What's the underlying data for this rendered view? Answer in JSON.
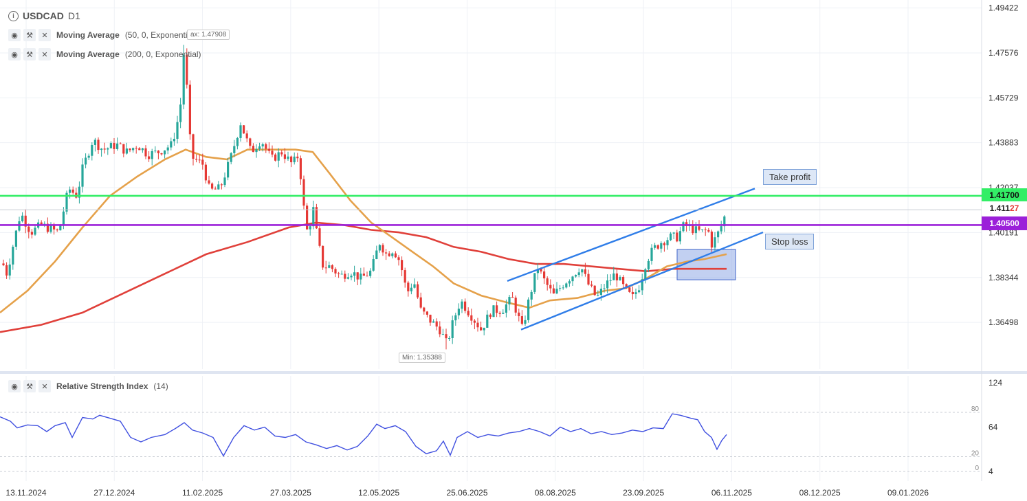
{
  "header": {
    "symbol": "USDCAD",
    "timeframe": "D1",
    "indicators": [
      {
        "name": "Moving Average",
        "params": "(50, 0, Exponential)"
      },
      {
        "name": "Moving Average",
        "params": "(200, 0, Exponential)"
      }
    ],
    "rsi": {
      "name": "Relative Strength Index",
      "params": "(14)"
    }
  },
  "colors": {
    "take_profit_line": "#33ee66",
    "stop_loss_line": "#9b20d9",
    "ema50": "#e5a14a",
    "ema200": "#e0403a",
    "channel": "#2f7de8",
    "rsi": "#4050e0",
    "bull": "#26a69a",
    "bear": "#e53935"
  },
  "annotations": {
    "take_profit": "Take profit",
    "stop_loss": "Stop loss",
    "max_tip": "ax: 1.47908",
    "min_tip": "Min: 1.35388"
  },
  "levels": {
    "take_profit_value": "1.41700",
    "current_value_a": "1.411",
    "current_value_b": "27",
    "stop_loss_value": "1.40500"
  },
  "chart_data": [
    {
      "type": "candlestick",
      "title": "USDCAD D1",
      "y_ticks": [
        "1.49422",
        "1.47576",
        "1.45729",
        "1.43883",
        "1.42037",
        "1.40191",
        "1.38344",
        "1.36498"
      ],
      "x_ticks": [
        "13.11.2024",
        "27.12.2024",
        "11.02.2025",
        "27.03.2025",
        "12.05.2025",
        "25.06.2025",
        "08.08.2025",
        "23.09.2025",
        "06.11.2025",
        "08.12.2025",
        "09.01.2026"
      ],
      "ylim": [
        1.3458,
        1.4975
      ],
      "max": 1.47908,
      "min": 1.35388,
      "horizontal_lines": [
        {
          "name": "Take profit",
          "value": 1.417
        },
        {
          "name": "Stop loss",
          "value": 1.405
        }
      ],
      "close_path": [
        [
          0,
          1.392
        ],
        [
          10,
          1.385
        ],
        [
          20,
          1.398
        ],
        [
          30,
          1.41
        ],
        [
          45,
          1.402
        ],
        [
          60,
          1.405
        ],
        [
          85,
          1.402
        ],
        [
          100,
          1.42
        ],
        [
          112,
          1.417
        ],
        [
          120,
          1.428
        ],
        [
          135,
          1.44
        ],
        [
          150,
          1.436
        ],
        [
          170,
          1.438
        ],
        [
          185,
          1.435
        ],
        [
          200,
          1.438
        ],
        [
          215,
          1.434
        ],
        [
          230,
          1.435
        ],
        [
          250,
          1.438
        ],
        [
          262,
          1.452
        ],
        [
          268,
          1.479
        ],
        [
          278,
          1.433
        ],
        [
          295,
          1.43
        ],
        [
          305,
          1.419
        ],
        [
          320,
          1.42
        ],
        [
          335,
          1.432
        ],
        [
          350,
          1.447
        ],
        [
          365,
          1.435
        ],
        [
          380,
          1.44
        ],
        [
          395,
          1.432
        ],
        [
          410,
          1.435
        ],
        [
          425,
          1.43
        ],
        [
          435,
          1.434
        ],
        [
          440,
          1.416
        ],
        [
          448,
          1.4
        ],
        [
          455,
          1.413
        ],
        [
          462,
          1.399
        ],
        [
          470,
          1.388
        ],
        [
          480,
          1.388
        ],
        [
          495,
          1.384
        ],
        [
          510,
          1.386
        ],
        [
          525,
          1.383
        ],
        [
          540,
          1.386
        ],
        [
          552,
          1.398
        ],
        [
          562,
          1.393
        ],
        [
          572,
          1.395
        ],
        [
          582,
          1.39
        ],
        [
          592,
          1.377
        ],
        [
          602,
          1.382
        ],
        [
          612,
          1.37
        ],
        [
          625,
          1.366
        ],
        [
          640,
          1.362
        ],
        [
          650,
          1.356
        ],
        [
          660,
          1.366
        ],
        [
          670,
          1.374
        ],
        [
          685,
          1.368
        ],
        [
          700,
          1.362
        ],
        [
          715,
          1.37
        ],
        [
          730,
          1.37
        ],
        [
          745,
          1.375
        ],
        [
          760,
          1.362
        ],
        [
          770,
          1.375
        ],
        [
          782,
          1.388
        ],
        [
          790,
          1.383
        ],
        [
          805,
          1.376
        ],
        [
          820,
          1.381
        ],
        [
          835,
          1.385
        ],
        [
          845,
          1.388
        ],
        [
          855,
          1.381
        ],
        [
          868,
          1.375
        ],
        [
          880,
          1.38
        ],
        [
          895,
          1.385
        ],
        [
          910,
          1.378
        ],
        [
          920,
          1.375
        ],
        [
          930,
          1.38
        ],
        [
          940,
          1.39
        ],
        [
          950,
          1.395
        ],
        [
          962,
          1.398
        ],
        [
          975,
          1.4
        ],
        [
          985,
          1.4
        ],
        [
          995,
          1.405
        ],
        [
          1010,
          1.403
        ],
        [
          1020,
          1.402
        ],
        [
          1030,
          1.403
        ],
        [
          1035,
          1.397
        ],
        [
          1042,
          1.4
        ],
        [
          1050,
          1.405
        ],
        [
          1057,
          1.411
        ]
      ],
      "ema50_path": [
        [
          0,
          1.369
        ],
        [
          40,
          1.378
        ],
        [
          80,
          1.39
        ],
        [
          120,
          1.404
        ],
        [
          160,
          1.417
        ],
        [
          200,
          1.425
        ],
        [
          240,
          1.432
        ],
        [
          270,
          1.436
        ],
        [
          300,
          1.433
        ],
        [
          330,
          1.432
        ],
        [
          360,
          1.436
        ],
        [
          400,
          1.436
        ],
        [
          430,
          1.436
        ],
        [
          455,
          1.435
        ],
        [
          480,
          1.426
        ],
        [
          510,
          1.415
        ],
        [
          540,
          1.406
        ],
        [
          570,
          1.4
        ],
        [
          600,
          1.394
        ],
        [
          630,
          1.388
        ],
        [
          660,
          1.381
        ],
        [
          700,
          1.376
        ],
        [
          740,
          1.373
        ],
        [
          770,
          1.371
        ],
        [
          800,
          1.374
        ],
        [
          840,
          1.375
        ],
        [
          880,
          1.378
        ],
        [
          910,
          1.379
        ],
        [
          940,
          1.383
        ],
        [
          970,
          1.388
        ],
        [
          1000,
          1.39
        ],
        [
          1025,
          1.391
        ],
        [
          1057,
          1.393
        ]
      ],
      "ema200_path": [
        [
          0,
          1.361
        ],
        [
          60,
          1.364
        ],
        [
          120,
          1.369
        ],
        [
          180,
          1.377
        ],
        [
          240,
          1.385
        ],
        [
          300,
          1.393
        ],
        [
          360,
          1.398
        ],
        [
          420,
          1.404
        ],
        [
          460,
          1.406
        ],
        [
          500,
          1.405
        ],
        [
          540,
          1.403
        ],
        [
          580,
          1.402
        ],
        [
          620,
          1.4
        ],
        [
          660,
          1.396
        ],
        [
          700,
          1.394
        ],
        [
          740,
          1.391
        ],
        [
          780,
          1.389
        ],
        [
          820,
          1.389
        ],
        [
          860,
          1.388
        ],
        [
          900,
          1.387
        ],
        [
          940,
          1.386
        ],
        [
          980,
          1.387
        ],
        [
          1020,
          1.387
        ],
        [
          1057,
          1.387
        ]
      ],
      "channel": [
        {
          "name": "upper",
          "from": [
            738,
            1.382
          ],
          "to": [
            1098,
            1.42
          ]
        },
        {
          "name": "lower",
          "from": [
            758,
            1.362
          ],
          "to": [
            1110,
            1.402
          ]
        }
      ],
      "stop_zone": {
        "x": [
          985,
          1070
        ],
        "y": [
          1.3825,
          1.395
        ]
      }
    },
    {
      "type": "line",
      "title": "Relative Strength Index (14)",
      "y_ticks": [
        "124",
        "64",
        "4"
      ],
      "guide_levels": [
        "80",
        "20",
        "0"
      ],
      "ylim": [
        4,
        124
      ],
      "series": [
        {
          "values": [
            [
              0,
              78
            ],
            [
              15,
              72
            ],
            [
              25,
              63
            ],
            [
              40,
              67
            ],
            [
              55,
              66
            ],
            [
              68,
              58
            ],
            [
              80,
              66
            ],
            [
              95,
              70
            ],
            [
              105,
              50
            ],
            [
              120,
              77
            ],
            [
              135,
              75
            ],
            [
              145,
              80
            ],
            [
              160,
              76
            ],
            [
              175,
              72
            ],
            [
              190,
              50
            ],
            [
              205,
              44
            ],
            [
              220,
              50
            ],
            [
              240,
              54
            ],
            [
              255,
              62
            ],
            [
              268,
              70
            ],
            [
              280,
              60
            ],
            [
              295,
              56
            ],
            [
              310,
              50
            ],
            [
              325,
              25
            ],
            [
              340,
              50
            ],
            [
              355,
              66
            ],
            [
              370,
              60
            ],
            [
              385,
              64
            ],
            [
              400,
              52
            ],
            [
              415,
              50
            ],
            [
              430,
              54
            ],
            [
              445,
              44
            ],
            [
              460,
              40
            ],
            [
              475,
              35
            ],
            [
              490,
              39
            ],
            [
              505,
              33
            ],
            [
              520,
              38
            ],
            [
              535,
              52
            ],
            [
              548,
              68
            ],
            [
              560,
              62
            ],
            [
              575,
              66
            ],
            [
              590,
              58
            ],
            [
              605,
              38
            ],
            [
              620,
              28
            ],
            [
              635,
              32
            ],
            [
              645,
              45
            ],
            [
              655,
              26
            ],
            [
              665,
              50
            ],
            [
              680,
              58
            ],
            [
              695,
              50
            ],
            [
              710,
              54
            ],
            [
              725,
              52
            ],
            [
              740,
              56
            ],
            [
              755,
              58
            ],
            [
              770,
              62
            ],
            [
              785,
              58
            ],
            [
              800,
              52
            ],
            [
              815,
              64
            ],
            [
              830,
              58
            ],
            [
              845,
              62
            ],
            [
              860,
              55
            ],
            [
              875,
              58
            ],
            [
              890,
              54
            ],
            [
              905,
              56
            ],
            [
              920,
              60
            ],
            [
              935,
              58
            ],
            [
              950,
              63
            ],
            [
              965,
              62
            ],
            [
              978,
              82
            ],
            [
              990,
              80
            ],
            [
              1005,
              76
            ],
            [
              1015,
              74
            ],
            [
              1025,
              58
            ],
            [
              1035,
              50
            ],
            [
              1043,
              34
            ],
            [
              1050,
              46
            ],
            [
              1057,
              54
            ]
          ]
        }
      ]
    }
  ]
}
